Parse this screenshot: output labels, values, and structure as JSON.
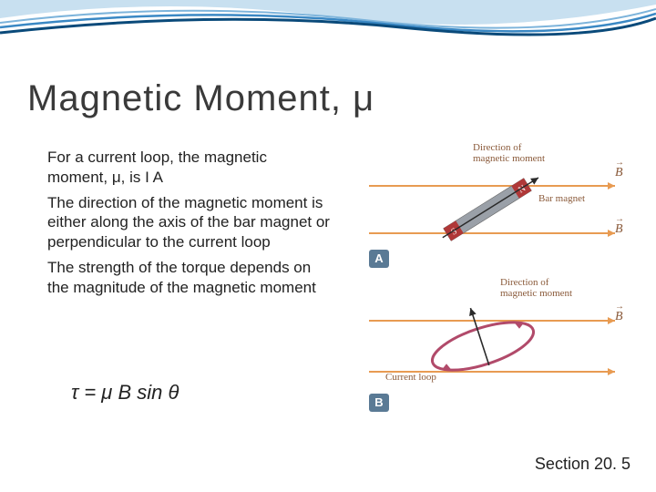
{
  "slide": {
    "title": "Magnetic Moment, μ",
    "paragraphs": [
      "For a current loop, the magnetic moment, μ, is I A",
      "The direction of the magnetic moment is either along the axis of the bar magnet or perpendicular to the current loop",
      "The strength of the torque depends on the magnitude of the magnetic moment"
    ],
    "equation": "τ = μ B sin θ",
    "section": "Section 20. 5"
  },
  "figure": {
    "panelA": {
      "badge": "A",
      "label_moment": "Direction of\nmagnetic moment",
      "label_barmagnet": "Bar magnet",
      "b_symbol": "B",
      "field_line_color": "#e89b52",
      "magnet_n": "N",
      "magnet_s": "S",
      "magnet_pole_color": "#b03838",
      "magnet_body_color": "#9aa0a8",
      "arrow_color": "#2a2a2a"
    },
    "panelB": {
      "badge": "B",
      "label_moment": "Direction of\nmagnetic moment",
      "label_loop": "Current loop",
      "b_symbol": "B",
      "field_line_color": "#e89b52",
      "loop_color": "#b14a6a",
      "arrow_color": "#2a2a2a"
    }
  },
  "decoration": {
    "wave_colors": [
      "#0a4a7a",
      "#3a88c4",
      "#7db4db",
      "#c8e0f0"
    ]
  }
}
